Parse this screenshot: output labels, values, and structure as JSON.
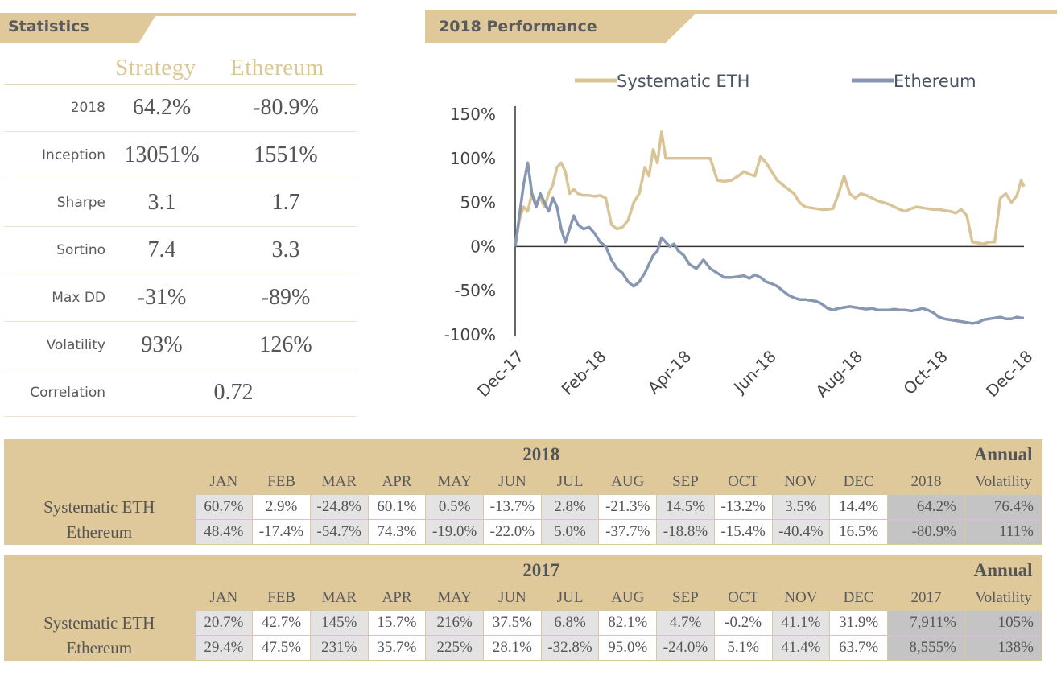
{
  "statistics": {
    "title": "Statistics",
    "col1": "Strategy",
    "col2": "Ethereum",
    "rows": [
      {
        "label": "2018",
        "strategy": "64.2%",
        "ethereum": "-80.9%"
      },
      {
        "label": "Inception",
        "strategy": "13051%",
        "ethereum": "1551%"
      },
      {
        "label": "Sharpe",
        "strategy": "3.1",
        "ethereum": "1.7"
      },
      {
        "label": "Sortino",
        "strategy": "7.4",
        "ethereum": "3.3"
      },
      {
        "label": "Max DD",
        "strategy": "-31%",
        "ethereum": "-89%"
      },
      {
        "label": "Volatility",
        "strategy": "93%",
        "ethereum": "126%"
      }
    ],
    "correlation": {
      "label": "Correlation",
      "value": "0.72"
    }
  },
  "performance": {
    "title": "2018 Performance"
  },
  "chart_data": {
    "type": "line",
    "title": "2018 Performance",
    "x_tick_labels": [
      "Dec-17",
      "Feb-18",
      "Apr-18",
      "Jun-18",
      "Aug-18",
      "Oct-18",
      "Dec-18"
    ],
    "x_tick_dates": [
      "2017-12-31",
      "2018-02-28",
      "2018-04-30",
      "2018-06-30",
      "2018-08-31",
      "2018-10-31",
      "2018-12-31"
    ],
    "y_tick_labels": [
      "150%",
      "100%",
      "50%",
      "0%",
      "-50%",
      "-100%"
    ],
    "y_ticks": [
      150,
      100,
      50,
      0,
      -50,
      -100
    ],
    "ylim": [
      -100,
      150
    ],
    "xlim": [
      "2017-12-31",
      "2018-12-31"
    ],
    "legend_position": "top",
    "series": [
      {
        "name": "Systematic ETH",
        "color": "#d9c496",
        "x": [
          "2017-12-31",
          "2018-01-03",
          "2018-01-06",
          "2018-01-09",
          "2018-01-12",
          "2018-01-15",
          "2018-01-18",
          "2018-01-21",
          "2018-01-24",
          "2018-01-27",
          "2018-01-30",
          "2018-02-02",
          "2018-02-05",
          "2018-02-08",
          "2018-02-11",
          "2018-02-14",
          "2018-02-18",
          "2018-02-22",
          "2018-02-26",
          "2018-03-02",
          "2018-03-06",
          "2018-03-10",
          "2018-03-14",
          "2018-03-18",
          "2018-03-22",
          "2018-03-26",
          "2018-03-30",
          "2018-04-03",
          "2018-04-06",
          "2018-04-09",
          "2018-04-12",
          "2018-04-15",
          "2018-04-18",
          "2018-04-21",
          "2018-04-24",
          "2018-04-27",
          "2018-05-01",
          "2018-05-05",
          "2018-05-10",
          "2018-05-15",
          "2018-05-20",
          "2018-05-25",
          "2018-05-30",
          "2018-06-04",
          "2018-06-09",
          "2018-06-13",
          "2018-06-17",
          "2018-06-21",
          "2018-06-25",
          "2018-06-29",
          "2018-07-03",
          "2018-07-07",
          "2018-07-11",
          "2018-07-15",
          "2018-07-19",
          "2018-07-23",
          "2018-07-27",
          "2018-07-31",
          "2018-08-04",
          "2018-08-08",
          "2018-08-12",
          "2018-08-16",
          "2018-08-20",
          "2018-08-24",
          "2018-08-28",
          "2018-09-01",
          "2018-09-05",
          "2018-09-09",
          "2018-09-13",
          "2018-09-17",
          "2018-09-21",
          "2018-09-25",
          "2018-09-29",
          "2018-10-03",
          "2018-10-07",
          "2018-10-11",
          "2018-10-15",
          "2018-10-19",
          "2018-10-23",
          "2018-10-27",
          "2018-10-31",
          "2018-11-04",
          "2018-11-08",
          "2018-11-12",
          "2018-11-16",
          "2018-11-20",
          "2018-11-24",
          "2018-11-28",
          "2018-12-02",
          "2018-12-06",
          "2018-12-10",
          "2018-12-14",
          "2018-12-18",
          "2018-12-22",
          "2018-12-26",
          "2018-12-29",
          "2018-12-31"
        ],
        "y": [
          0,
          30,
          45,
          40,
          60,
          50,
          55,
          45,
          60,
          70,
          90,
          95,
          85,
          60,
          65,
          60,
          58,
          58,
          57,
          58,
          55,
          25,
          20,
          22,
          30,
          50,
          60,
          90,
          80,
          110,
          95,
          130,
          100,
          100,
          100,
          100,
          100,
          100,
          100,
          100,
          100,
          75,
          74,
          75,
          80,
          85,
          82,
          80,
          102,
          95,
          85,
          75,
          70,
          65,
          60,
          50,
          45,
          44,
          43,
          42,
          42,
          43,
          60,
          80,
          60,
          55,
          60,
          58,
          55,
          52,
          50,
          48,
          45,
          42,
          40,
          43,
          45,
          44,
          43,
          42,
          42,
          41,
          40,
          38,
          42,
          35,
          5,
          4,
          3,
          5,
          5,
          55,
          60,
          50,
          58,
          75,
          68
        ]
      },
      {
        "name": "Ethereum",
        "color": "#8797b1",
        "x": [
          "2017-12-31",
          "2018-01-03",
          "2018-01-06",
          "2018-01-09",
          "2018-01-12",
          "2018-01-15",
          "2018-01-18",
          "2018-01-21",
          "2018-01-24",
          "2018-01-27",
          "2018-01-30",
          "2018-02-02",
          "2018-02-05",
          "2018-02-08",
          "2018-02-11",
          "2018-02-14",
          "2018-02-18",
          "2018-02-22",
          "2018-02-26",
          "2018-03-02",
          "2018-03-06",
          "2018-03-10",
          "2018-03-14",
          "2018-03-18",
          "2018-03-22",
          "2018-03-26",
          "2018-03-30",
          "2018-04-03",
          "2018-04-06",
          "2018-04-09",
          "2018-04-12",
          "2018-04-15",
          "2018-04-18",
          "2018-04-21",
          "2018-04-24",
          "2018-04-27",
          "2018-05-01",
          "2018-05-05",
          "2018-05-10",
          "2018-05-15",
          "2018-05-20",
          "2018-05-25",
          "2018-05-30",
          "2018-06-04",
          "2018-06-09",
          "2018-06-13",
          "2018-06-17",
          "2018-06-21",
          "2018-06-25",
          "2018-06-29",
          "2018-07-03",
          "2018-07-07",
          "2018-07-11",
          "2018-07-15",
          "2018-07-19",
          "2018-07-23",
          "2018-07-27",
          "2018-07-31",
          "2018-08-04",
          "2018-08-08",
          "2018-08-12",
          "2018-08-16",
          "2018-08-20",
          "2018-08-24",
          "2018-08-28",
          "2018-09-01",
          "2018-09-05",
          "2018-09-09",
          "2018-09-13",
          "2018-09-17",
          "2018-09-21",
          "2018-09-25",
          "2018-09-29",
          "2018-10-03",
          "2018-10-07",
          "2018-10-11",
          "2018-10-15",
          "2018-10-19",
          "2018-10-23",
          "2018-10-27",
          "2018-10-31",
          "2018-11-04",
          "2018-11-08",
          "2018-11-12",
          "2018-11-16",
          "2018-11-20",
          "2018-11-24",
          "2018-11-28",
          "2018-12-02",
          "2018-12-06",
          "2018-12-10",
          "2018-12-14",
          "2018-12-18",
          "2018-12-22",
          "2018-12-26",
          "2018-12-29",
          "2018-12-31"
        ],
        "y": [
          0,
          35,
          70,
          95,
          60,
          45,
          60,
          50,
          40,
          55,
          45,
          20,
          5,
          20,
          35,
          25,
          20,
          22,
          15,
          5,
          0,
          -15,
          -25,
          -30,
          -40,
          -45,
          -40,
          -30,
          -20,
          -10,
          -5,
          10,
          5,
          0,
          3,
          -5,
          -10,
          -20,
          -25,
          -15,
          -25,
          -30,
          -35,
          -35,
          -34,
          -33,
          -36,
          -32,
          -35,
          -40,
          -42,
          -45,
          -50,
          -55,
          -58,
          -60,
          -60,
          -61,
          -62,
          -65,
          -70,
          -72,
          -70,
          -69,
          -68,
          -69,
          -70,
          -71,
          -70,
          -72,
          -72,
          -72,
          -71,
          -72,
          -72,
          -73,
          -72,
          -70,
          -72,
          -75,
          -80,
          -82,
          -83,
          -84,
          -85,
          -86,
          -87,
          -86,
          -83,
          -82,
          -81,
          -80,
          -82,
          -82,
          -80,
          -81,
          -81
        ]
      }
    ]
  },
  "tables": [
    {
      "year": "2018",
      "annual_label": "Annual",
      "months": [
        "JAN",
        "FEB",
        "MAR",
        "APR",
        "MAY",
        "JUN",
        "JUL",
        "AUG",
        "SEP",
        "OCT",
        "NOV",
        "DEC"
      ],
      "annual_col": "2018",
      "vol_col": "Volatility",
      "rows": [
        {
          "name": "Systematic ETH",
          "values": [
            "60.7%",
            "2.9%",
            "-24.8%",
            "60.1%",
            "0.5%",
            "-13.7%",
            "2.8%",
            "-21.3%",
            "14.5%",
            "-13.2%",
            "3.5%",
            "14.4%"
          ],
          "annual": "64.2%",
          "vol": "76.4%"
        },
        {
          "name": "Ethereum",
          "values": [
            "48.4%",
            "-17.4%",
            "-54.7%",
            "74.3%",
            "-19.0%",
            "-22.0%",
            "5.0%",
            "-37.7%",
            "-18.8%",
            "-15.4%",
            "-40.4%",
            "16.5%"
          ],
          "annual": "-80.9%",
          "vol": "111%"
        }
      ]
    },
    {
      "year": "2017",
      "annual_label": "Annual",
      "months": [
        "JAN",
        "FEB",
        "MAR",
        "APR",
        "MAY",
        "JUN",
        "JUL",
        "AUG",
        "SEP",
        "OCT",
        "NOV",
        "DEC"
      ],
      "annual_col": "2017",
      "vol_col": "Volatility",
      "rows": [
        {
          "name": "Systematic ETH",
          "values": [
            "20.7%",
            "42.7%",
            "145%",
            "15.7%",
            "216%",
            "37.5%",
            "6.8%",
            "82.1%",
            "4.7%",
            "-0.2%",
            "41.1%",
            "31.9%"
          ],
          "annual": "7,911%",
          "vol": "105%"
        },
        {
          "name": "Ethereum",
          "values": [
            "29.4%",
            "47.5%",
            "231%",
            "35.7%",
            "225%",
            "28.1%",
            "-32.8%",
            "95.0%",
            "-24.0%",
            "5.1%",
            "41.4%",
            "63.7%"
          ],
          "annual": "8,555%",
          "vol": "138%"
        }
      ]
    }
  ]
}
